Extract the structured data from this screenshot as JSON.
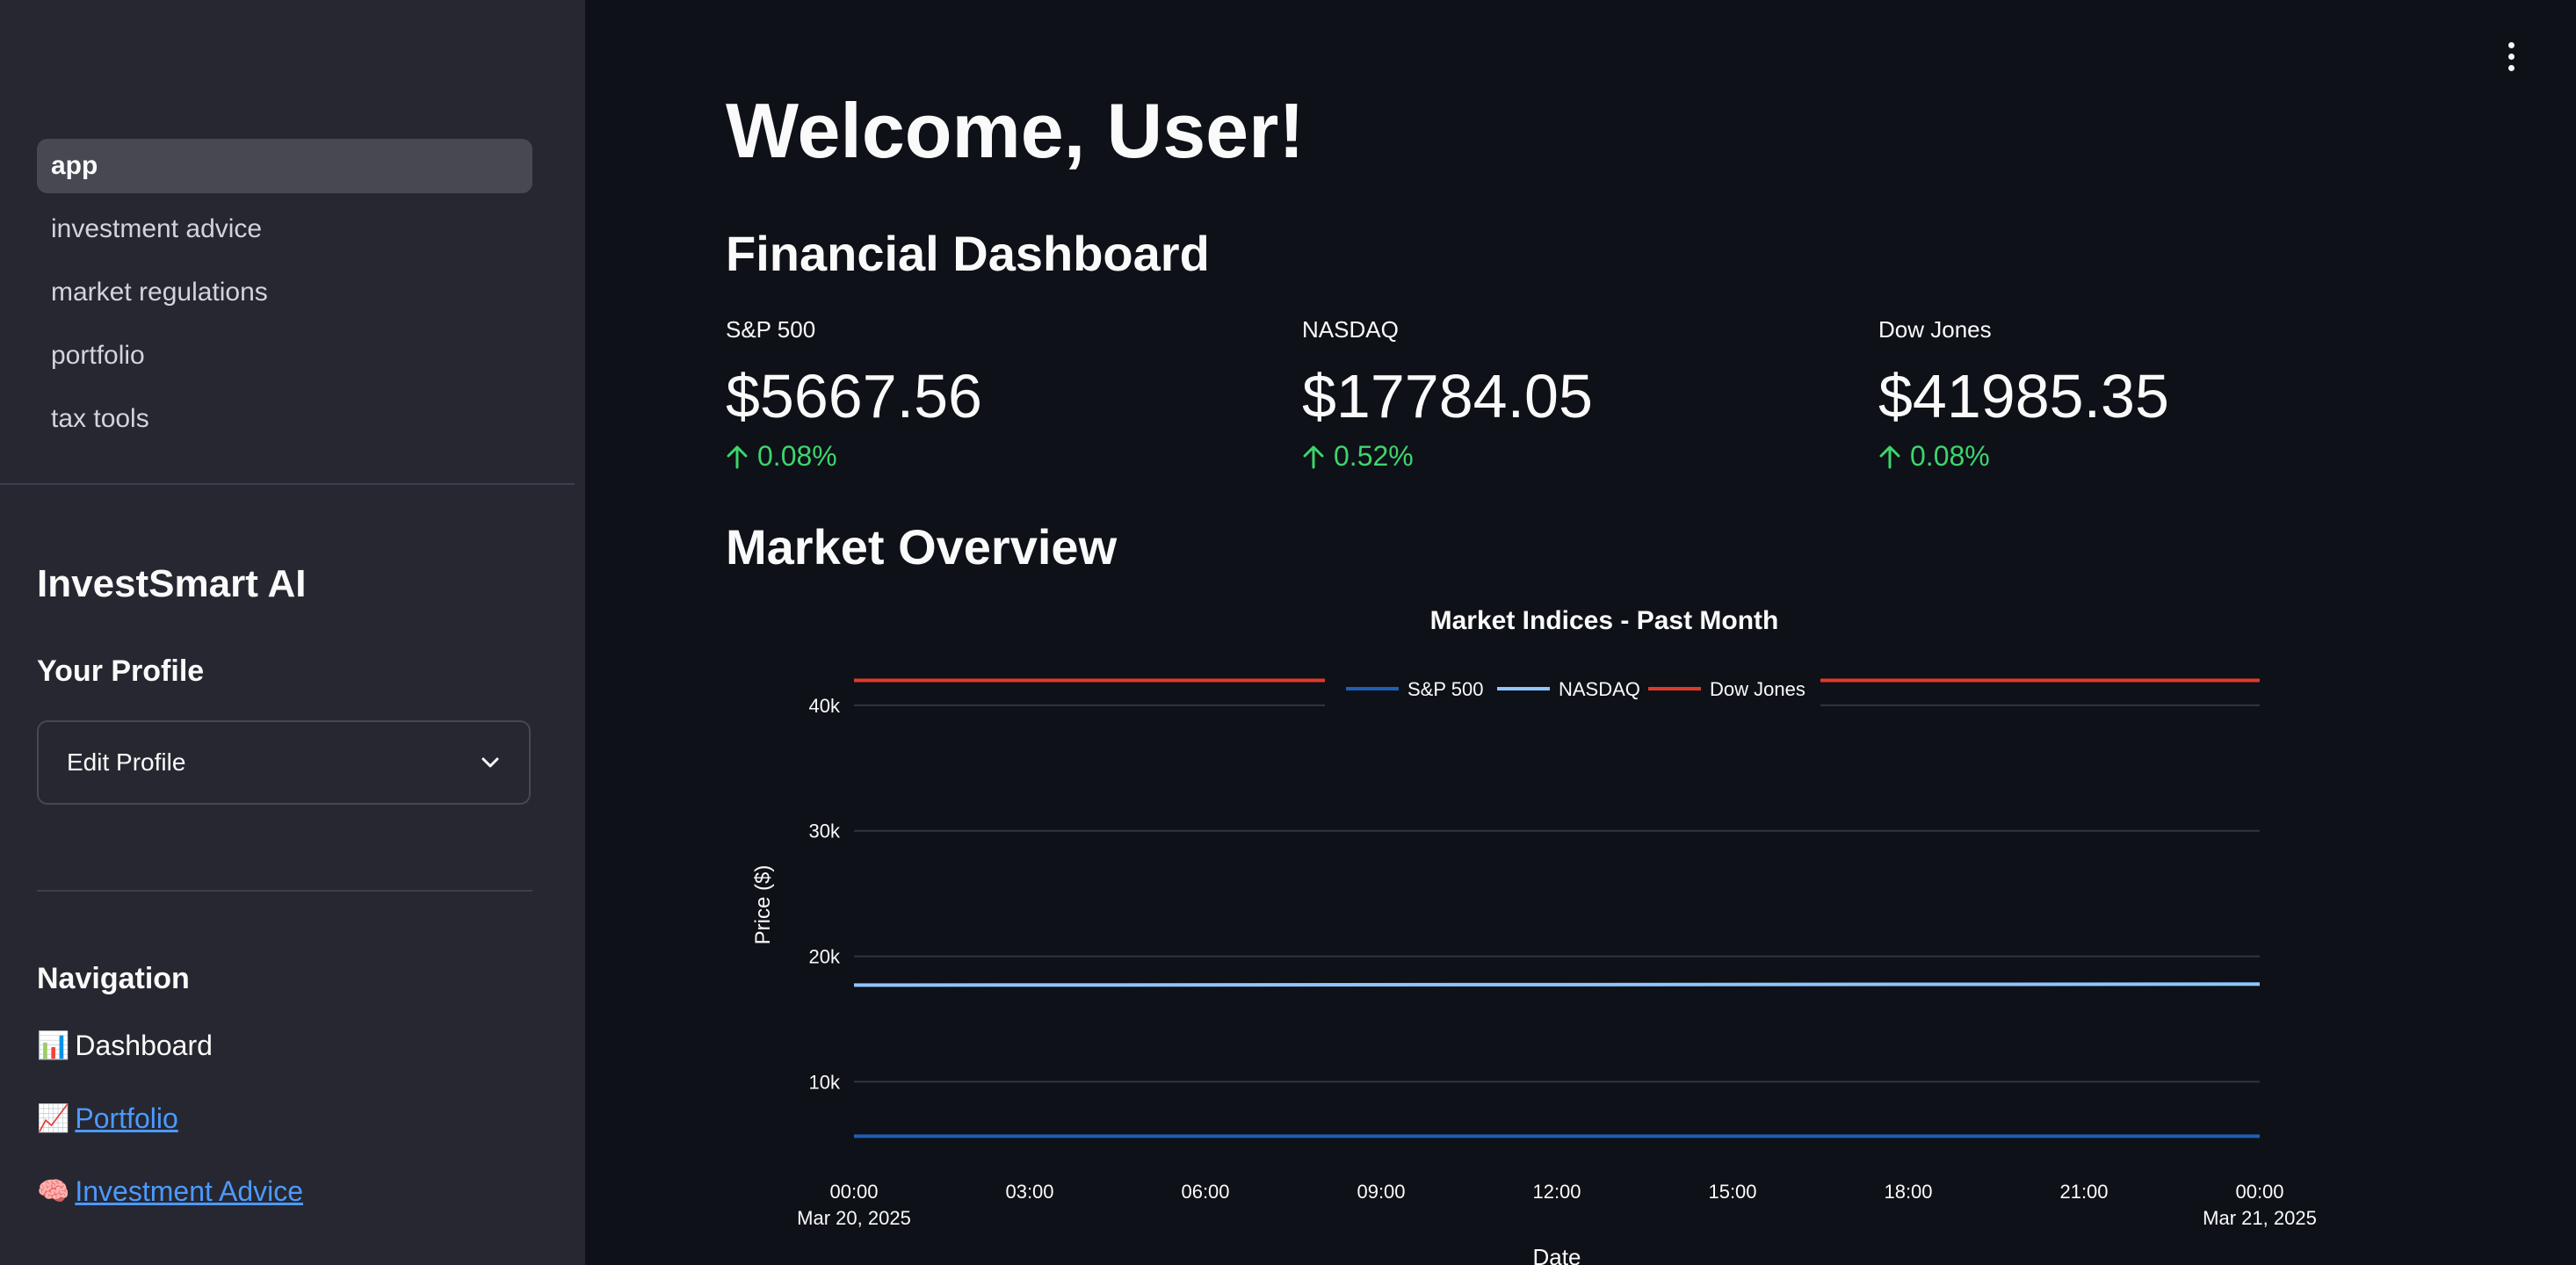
{
  "sidebar": {
    "pages": [
      "app",
      "investment advice",
      "market regulations",
      "portfolio",
      "tax tools"
    ],
    "active_page": "app",
    "brand": "InvestSmart AI",
    "profile_heading": "Your Profile",
    "expander_label": "Edit Profile",
    "navigation_heading": "Navigation",
    "nav_dashboard": {
      "emoji": "📊",
      "label": "Dashboard"
    },
    "nav_portfolio": {
      "emoji": "📈",
      "label": "Portfolio"
    },
    "nav_investment": {
      "emoji": "🧠",
      "label": "Investment Advice"
    }
  },
  "main": {
    "welcome": "Welcome, User!",
    "dashboard_heading": "Financial Dashboard",
    "metrics": [
      {
        "label": "S&P 500",
        "value": "$5667.56",
        "delta": "0.08%"
      },
      {
        "label": "NASDAQ",
        "value": "$17784.05",
        "delta": "0.52%"
      },
      {
        "label": "Dow Jones",
        "value": "$41985.35",
        "delta": "0.08%"
      }
    ],
    "overview_heading": "Market Overview"
  },
  "colors": {
    "sp500": "#1f5fb4",
    "nasdaq": "#8fc6ff",
    "dow": "#e0392b",
    "delta_up": "#3dd56d"
  },
  "chart_data": {
    "type": "line",
    "title": "Market Indices - Past Month",
    "xlabel": "Date",
    "ylabel": "Price ($)",
    "x_ticks": [
      "00:00",
      "03:00",
      "06:00",
      "09:00",
      "12:00",
      "15:00",
      "18:00",
      "21:00",
      "00:00"
    ],
    "x_tick_dates": [
      "Mar 20, 2025",
      "",
      "",
      "",
      "",
      "",
      "",
      "",
      "Mar 21, 2025"
    ],
    "x": [
      "2025-03-20 00:00",
      "2025-03-21 00:00"
    ],
    "y_ticks": [
      10000,
      20000,
      30000,
      40000
    ],
    "y_tick_labels": [
      "10k",
      "20k",
      "30k",
      "40k"
    ],
    "ylim": [
      5200,
      43000
    ],
    "grid": true,
    "legend_position": "top-center",
    "series": [
      {
        "name": "S&P 500",
        "values": [
          5667.56,
          5667.56
        ]
      },
      {
        "name": "NASDAQ",
        "values": [
          17700,
          17784.05
        ]
      },
      {
        "name": "Dow Jones",
        "values": [
          41985.35,
          41985.35
        ]
      }
    ]
  }
}
